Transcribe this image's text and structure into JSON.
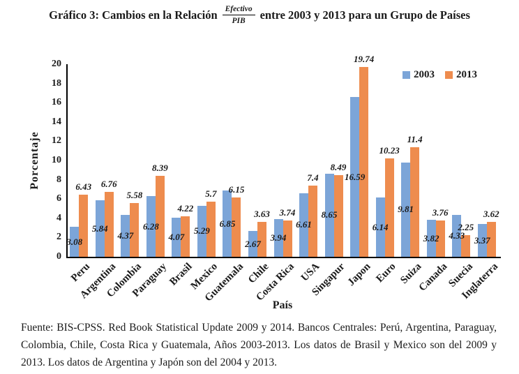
{
  "title": {
    "prefix": "Gráfico 3: Cambios en la Relación",
    "fraction_numerator": "Efectivo",
    "fraction_denominator": "PIB",
    "suffix": "entre 2003 y 2013 para un Grupo de Países"
  },
  "chart_data": {
    "type": "bar",
    "title": "Cambios en la Relación Efectivo/PIB entre 2003 y 2013 para un Grupo de Países",
    "categories": [
      "Peru",
      "Argentina",
      "Colombia",
      "Paraguay",
      "Brasil",
      "Mexico",
      "Guatemala",
      "Chile",
      "Costa Rica",
      "USA",
      "Singapur",
      "Japon",
      "Euro",
      "Suiza",
      "Canada",
      "Suecia",
      "Inglaterra"
    ],
    "series": [
      {
        "name": "2003",
        "color": "#7CA5D8",
        "values": [
          3.08,
          5.84,
          4.37,
          6.28,
          4.07,
          5.29,
          6.85,
          2.67,
          3.94,
          6.61,
          8.65,
          16.59,
          6.14,
          9.81,
          3.82,
          4.33,
          3.37
        ]
      },
      {
        "name": "2013",
        "color": "#EE8C4E",
        "values": [
          6.43,
          6.76,
          5.58,
          8.39,
          4.22,
          5.7,
          6.15,
          3.63,
          3.74,
          7.4,
          8.49,
          19.74,
          10.23,
          11.4,
          3.76,
          2.25,
          3.62
        ]
      }
    ],
    "xlabel": "País",
    "ylabel": "Porcentaje",
    "ylim": [
      0,
      20
    ],
    "ytick_step": 2,
    "grid": false,
    "legend_position": "top-right-inside",
    "label_positions": {
      "2003": "center-of-bar",
      "2013": "outside-end"
    }
  },
  "footer": {
    "lines": [
      "Fuente: BIS-CPSS. Red Book Statistical Update 2009 y 2014. Bancos Centrales: Perú, Argentina, Paraguay,",
      "Colombia, Chile, Costa Rica y Guatemala, Años 2003-2013. Los datos de Brasil y Mexico son del 2009 y",
      "2013. Los datos de Argentina y Japón son del 2004 y 2013."
    ]
  }
}
